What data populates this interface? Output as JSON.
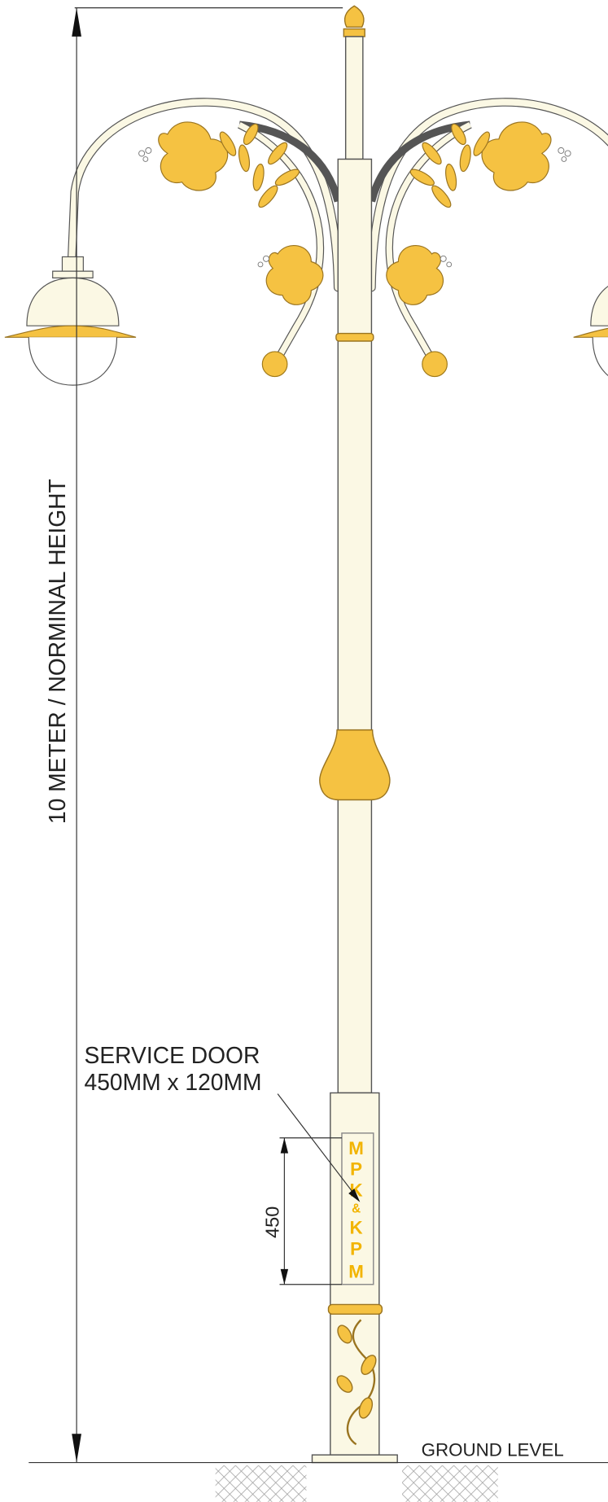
{
  "dimensions": {
    "height_label": "10 METER / NORMINAL HEIGHT",
    "door_height_label": "450"
  },
  "service_door": {
    "title": "SERVICE DOOR",
    "size": "450MM x 120MM"
  },
  "logo_letters": [
    "M",
    "P",
    "K",
    "&",
    "K",
    "P",
    "M"
  ],
  "ground_label": "GROUND LEVEL"
}
